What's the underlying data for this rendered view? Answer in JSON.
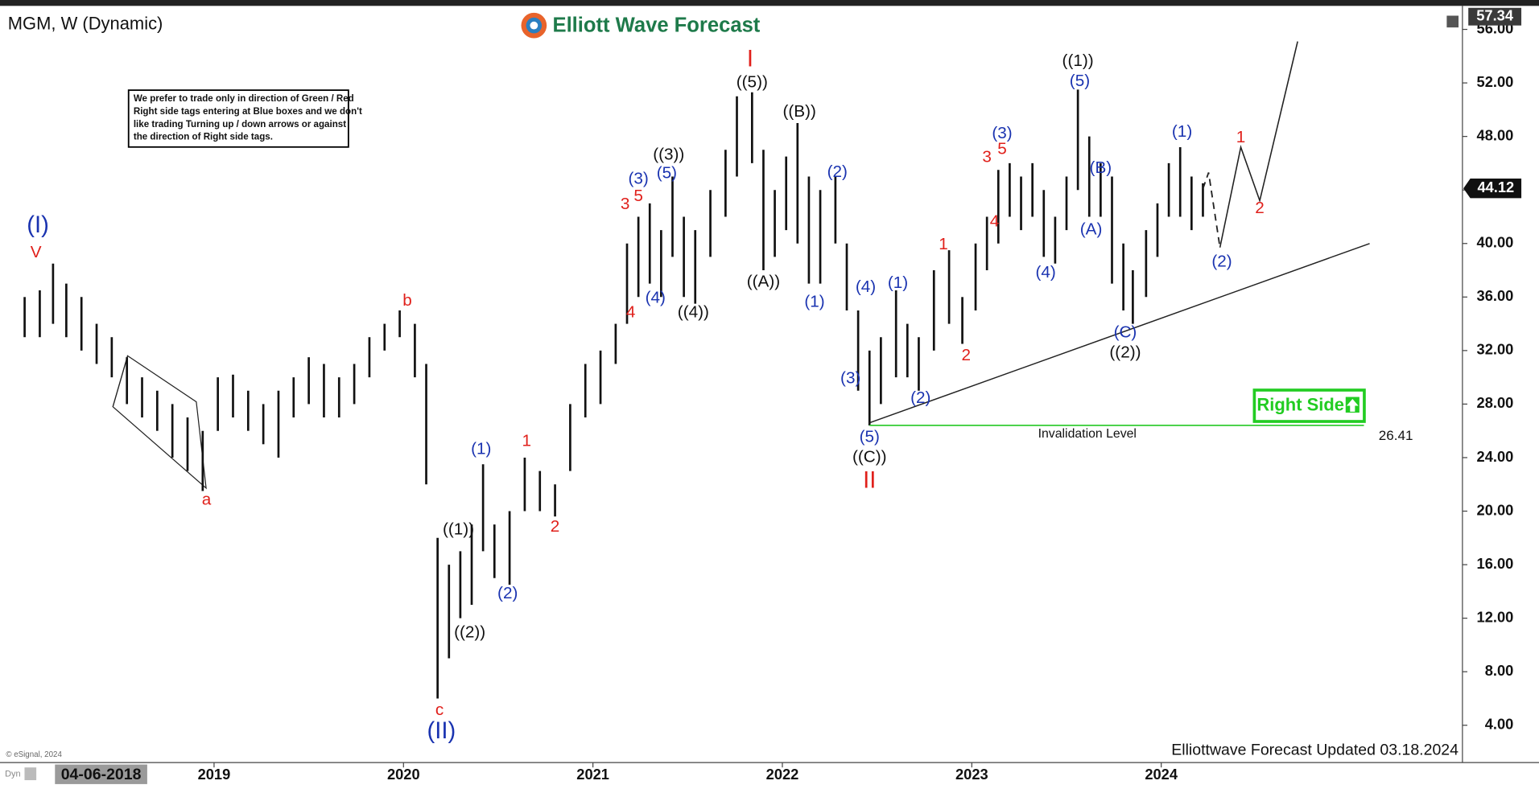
{
  "chart_data": {
    "type": "ohlc",
    "title": "MGM, W (Dynamic)",
    "logo": "Elliott Wave Forecast",
    "note": [
      "We prefer to trade only in direction of Green / Red",
      "Right side tags entering at Blue boxes and we don't",
      "like trading Turning up / down arrows or against",
      "the direction of Right side tags."
    ],
    "badge": "Right Side",
    "footer": "Elliottwave Forecast Updated 03.18.2024",
    "source": "© eSignal, 2024",
    "cursor_date": "04-06-2018",
    "mode": "Dyn",
    "x": [
      2018.0,
      2018.08,
      2018.15,
      2018.22,
      2018.3,
      2018.38,
      2018.46,
      2018.54,
      2018.62,
      2018.7,
      2018.78,
      2018.86,
      2018.94,
      2019.02,
      2019.1,
      2019.18,
      2019.26,
      2019.34,
      2019.42,
      2019.5,
      2019.58,
      2019.66,
      2019.74,
      2019.82,
      2019.9,
      2019.98,
      2020.06,
      2020.12,
      2020.18,
      2020.24,
      2020.3,
      2020.36,
      2020.42,
      2020.48,
      2020.56,
      2020.64,
      2020.72,
      2020.8,
      2020.88,
      2020.96,
      2021.04,
      2021.12,
      2021.18,
      2021.24,
      2021.3,
      2021.36,
      2021.42,
      2021.48,
      2021.54,
      2021.62,
      2021.7,
      2021.76,
      2021.84,
      2021.9,
      2021.96,
      2022.02,
      2022.08,
      2022.14,
      2022.2,
      2022.28,
      2022.34,
      2022.4,
      2022.46,
      2022.52,
      2022.6,
      2022.66,
      2022.72,
      2022.8,
      2022.88,
      2022.95,
      2023.02,
      2023.08,
      2023.14,
      2023.2,
      2023.26,
      2023.32,
      2023.38,
      2023.44,
      2023.5,
      2023.56,
      2023.62,
      2023.68,
      2023.74,
      2023.8,
      2023.85,
      2023.92,
      2023.98,
      2024.04,
      2024.1,
      2024.16,
      2024.22
    ],
    "lows": [
      33,
      33,
      34,
      33,
      32,
      31,
      30,
      28,
      27,
      26,
      24,
      23,
      21.5,
      26,
      27,
      26,
      25,
      24,
      27,
      28,
      27,
      27,
      28,
      30,
      32,
      33,
      30,
      22,
      6,
      9,
      12,
      13,
      17,
      15,
      14.5,
      20,
      20,
      19.6,
      23,
      27,
      28,
      31,
      34,
      36,
      37,
      36,
      39,
      36,
      35.5,
      39,
      42,
      45,
      46,
      38,
      39,
      41,
      40,
      37,
      37,
      40,
      35,
      29,
      26.4,
      28,
      30,
      30,
      29,
      32,
      34,
      32.5,
      35,
      38,
      40,
      42,
      41,
      42,
      39,
      38.5,
      41,
      44,
      42,
      42,
      37,
      35,
      34,
      36,
      39,
      42,
      42,
      41,
      42
    ],
    "highs": [
      36,
      36.5,
      38.5,
      37,
      36,
      34,
      33,
      31.5,
      30,
      29,
      28,
      27,
      26,
      30,
      30.2,
      29,
      28,
      29,
      30,
      31.5,
      31,
      30,
      31,
      33,
      34,
      35,
      34,
      31,
      18,
      16,
      17,
      19,
      23.5,
      19,
      20,
      24,
      23,
      22,
      28,
      31,
      32,
      34,
      40,
      42,
      43,
      41,
      45,
      42,
      41,
      44,
      47,
      51,
      51.3,
      47,
      44,
      46.5,
      49,
      45,
      44,
      45,
      40,
      35,
      32,
      33,
      36.5,
      34,
      33,
      38,
      39.5,
      36,
      40,
      42,
      45.5,
      46,
      45,
      46,
      44,
      42,
      45,
      51.5,
      48,
      46,
      45,
      40,
      38,
      41,
      43,
      46,
      47.2,
      45,
      44.5
    ],
    "color": "#111111",
    "projection_dashed": {
      "x": [
        2024.22,
        2024.25,
        2024.31
      ],
      "values": [
        44.1,
        45.3,
        39.7
      ]
    },
    "projection_solid": {
      "x": [
        2024.31,
        2024.42,
        2024.52,
        2024.72
      ],
      "values": [
        39.7,
        47.2,
        43.2,
        55.1
      ]
    },
    "trendline": {
      "x": [
        2022.46,
        2025.1
      ],
      "values": [
        26.6,
        40.0
      ]
    },
    "invalidation": {
      "label": "Invalidation Level",
      "value": 26.41,
      "x": [
        2022.46,
        2025.07
      ],
      "color": "#33cc33"
    },
    "last_high": 57.34,
    "last_price": 44.12,
    "annotations": [
      {
        "text": "(I)",
        "x": 2018.07,
        "y": 41.3,
        "color": "#1a33b0"
      },
      {
        "text": "V",
        "x": 2018.06,
        "y": 39.3,
        "color": "#e0201b"
      },
      {
        "text": "a",
        "x": 2018.96,
        "y": 20.8,
        "color": "#e0201b"
      },
      {
        "text": "b",
        "x": 2020.02,
        "y": 35.7,
        "color": "#e0201b"
      },
      {
        "text": "c",
        "x": 2020.19,
        "y": 5.1,
        "color": "#e0201b"
      },
      {
        "text": "(II)",
        "x": 2020.2,
        "y": 3.5,
        "color": "#1a33b0"
      },
      {
        "text": "((1))",
        "x": 2020.29,
        "y": 18.6,
        "color": "#111111"
      },
      {
        "text": "((2))",
        "x": 2020.35,
        "y": 10.9,
        "color": "#111111"
      },
      {
        "text": "(1)",
        "x": 2020.41,
        "y": 24.6,
        "color": "#1a33b0"
      },
      {
        "text": "(2)",
        "x": 2020.55,
        "y": 13.8,
        "color": "#1a33b0"
      },
      {
        "text": "1",
        "x": 2020.65,
        "y": 25.2,
        "color": "#e0201b"
      },
      {
        "text": "2",
        "x": 2020.8,
        "y": 18.8,
        "color": "#e0201b"
      },
      {
        "text": "3",
        "x": 2021.17,
        "y": 42.9,
        "color": "#e0201b"
      },
      {
        "text": "5",
        "x": 2021.24,
        "y": 43.5,
        "color": "#e0201b"
      },
      {
        "text": "(3)",
        "x": 2021.24,
        "y": 44.8,
        "color": "#1a33b0"
      },
      {
        "text": "4",
        "x": 2021.2,
        "y": 34.8,
        "color": "#e0201b"
      },
      {
        "text": "(4)",
        "x": 2021.33,
        "y": 35.9,
        "color": "#1a33b0"
      },
      {
        "text": "(5)",
        "x": 2021.39,
        "y": 45.2,
        "color": "#1a33b0"
      },
      {
        "text": "((3))",
        "x": 2021.4,
        "y": 46.6,
        "color": "#111111"
      },
      {
        "text": "((4))",
        "x": 2021.53,
        "y": 34.8,
        "color": "#111111"
      },
      {
        "text": "I",
        "x": 2021.83,
        "y": 53.7,
        "color": "#e0201b"
      },
      {
        "text": "((5))",
        "x": 2021.84,
        "y": 52.0,
        "color": "#111111"
      },
      {
        "text": "((A))",
        "x": 2021.9,
        "y": 37.1,
        "color": "#111111"
      },
      {
        "text": "((B))",
        "x": 2022.09,
        "y": 49.8,
        "color": "#111111"
      },
      {
        "text": "(2)",
        "x": 2022.29,
        "y": 45.3,
        "color": "#1a33b0"
      },
      {
        "text": "(1)",
        "x": 2022.17,
        "y": 35.6,
        "color": "#1a33b0"
      },
      {
        "text": "(4)",
        "x": 2022.44,
        "y": 36.7,
        "color": "#1a33b0"
      },
      {
        "text": "(3)",
        "x": 2022.36,
        "y": 29.9,
        "color": "#1a33b0"
      },
      {
        "text": "(5)",
        "x": 2022.46,
        "y": 25.5,
        "color": "#1a33b0"
      },
      {
        "text": "((C))",
        "x": 2022.46,
        "y": 24.0,
        "color": "#111111"
      },
      {
        "text": "II",
        "x": 2022.46,
        "y": 22.2,
        "color": "#e0201b"
      },
      {
        "text": "(1)",
        "x": 2022.61,
        "y": 37.0,
        "color": "#1a33b0"
      },
      {
        "text": "(2)",
        "x": 2022.73,
        "y": 28.4,
        "color": "#1a33b0"
      },
      {
        "text": "1",
        "x": 2022.85,
        "y": 39.9,
        "color": "#e0201b"
      },
      {
        "text": "2",
        "x": 2022.97,
        "y": 31.6,
        "color": "#e0201b"
      },
      {
        "text": "3",
        "x": 2023.08,
        "y": 46.4,
        "color": "#e0201b"
      },
      {
        "text": "5",
        "x": 2023.16,
        "y": 47.0,
        "color": "#e0201b"
      },
      {
        "text": "(3)",
        "x": 2023.16,
        "y": 48.2,
        "color": "#1a33b0"
      },
      {
        "text": "4",
        "x": 2023.12,
        "y": 41.6,
        "color": "#e0201b"
      },
      {
        "text": "(4)",
        "x": 2023.39,
        "y": 37.8,
        "color": "#1a33b0"
      },
      {
        "text": "((1))",
        "x": 2023.56,
        "y": 53.6,
        "color": "#111111"
      },
      {
        "text": "(5)",
        "x": 2023.57,
        "y": 52.1,
        "color": "#1a33b0"
      },
      {
        "text": "(B)",
        "x": 2023.68,
        "y": 45.6,
        "color": "#1a33b0"
      },
      {
        "text": "(A)",
        "x": 2023.63,
        "y": 41.0,
        "color": "#1a33b0"
      },
      {
        "text": "(C)",
        "x": 2023.81,
        "y": 33.3,
        "color": "#1a33b0"
      },
      {
        "text": "((2))",
        "x": 2023.81,
        "y": 31.8,
        "color": "#111111"
      },
      {
        "text": "(1)",
        "x": 2024.11,
        "y": 48.3,
        "color": "#1a33b0"
      },
      {
        "text": "(2)",
        "x": 2024.32,
        "y": 38.6,
        "color": "#1a33b0"
      },
      {
        "text": "1",
        "x": 2024.42,
        "y": 47.9,
        "color": "#e0201b"
      },
      {
        "text": "2",
        "x": 2024.52,
        "y": 42.6,
        "color": "#e0201b"
      }
    ],
    "xlim": [
      2017.87,
      2025.59
    ],
    "xticks": [
      2019,
      2020,
      2021,
      2022,
      2023,
      2024
    ],
    "ylim": [
      1.36,
      57.61
    ],
    "yticks": [
      {
        "value": 4,
        "label": "4.00"
      },
      {
        "value": 8,
        "label": "8.00"
      },
      {
        "value": 12,
        "label": "12.00"
      },
      {
        "value": 16,
        "label": "16.00"
      },
      {
        "value": 20,
        "label": "20.00"
      },
      {
        "value": 24,
        "label": "24.00"
      },
      {
        "value": 28,
        "label": "28.00"
      },
      {
        "value": 32,
        "label": "32.00"
      },
      {
        "value": 36,
        "label": "36.00"
      },
      {
        "value": 40,
        "label": "40.00"
      },
      {
        "value": 44,
        "label": "44.00"
      },
      {
        "value": 48,
        "label": "48.00"
      },
      {
        "value": 52,
        "label": "52.00"
      },
      {
        "value": 56,
        "label": "56.00"
      }
    ]
  }
}
